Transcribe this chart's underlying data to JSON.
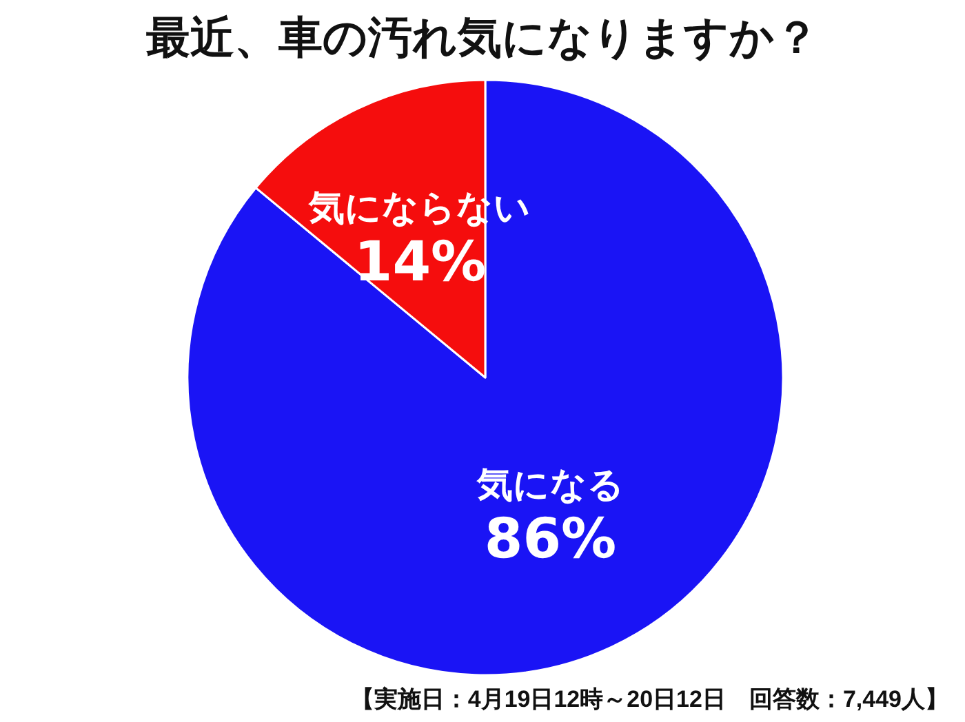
{
  "chart_data": {
    "type": "pie",
    "title": "最近、車の汚れ気になりますか？",
    "categories": [
      "気になる",
      "気にならない"
    ],
    "values": [
      86,
      14
    ],
    "value_labels": [
      "86%",
      "14%"
    ],
    "colors": [
      "#1a14f5",
      "#f50d0d"
    ],
    "annotations": [
      "【実施日：4月19日12時～20日12日　回答数：7,449人】"
    ],
    "legend": false
  }
}
